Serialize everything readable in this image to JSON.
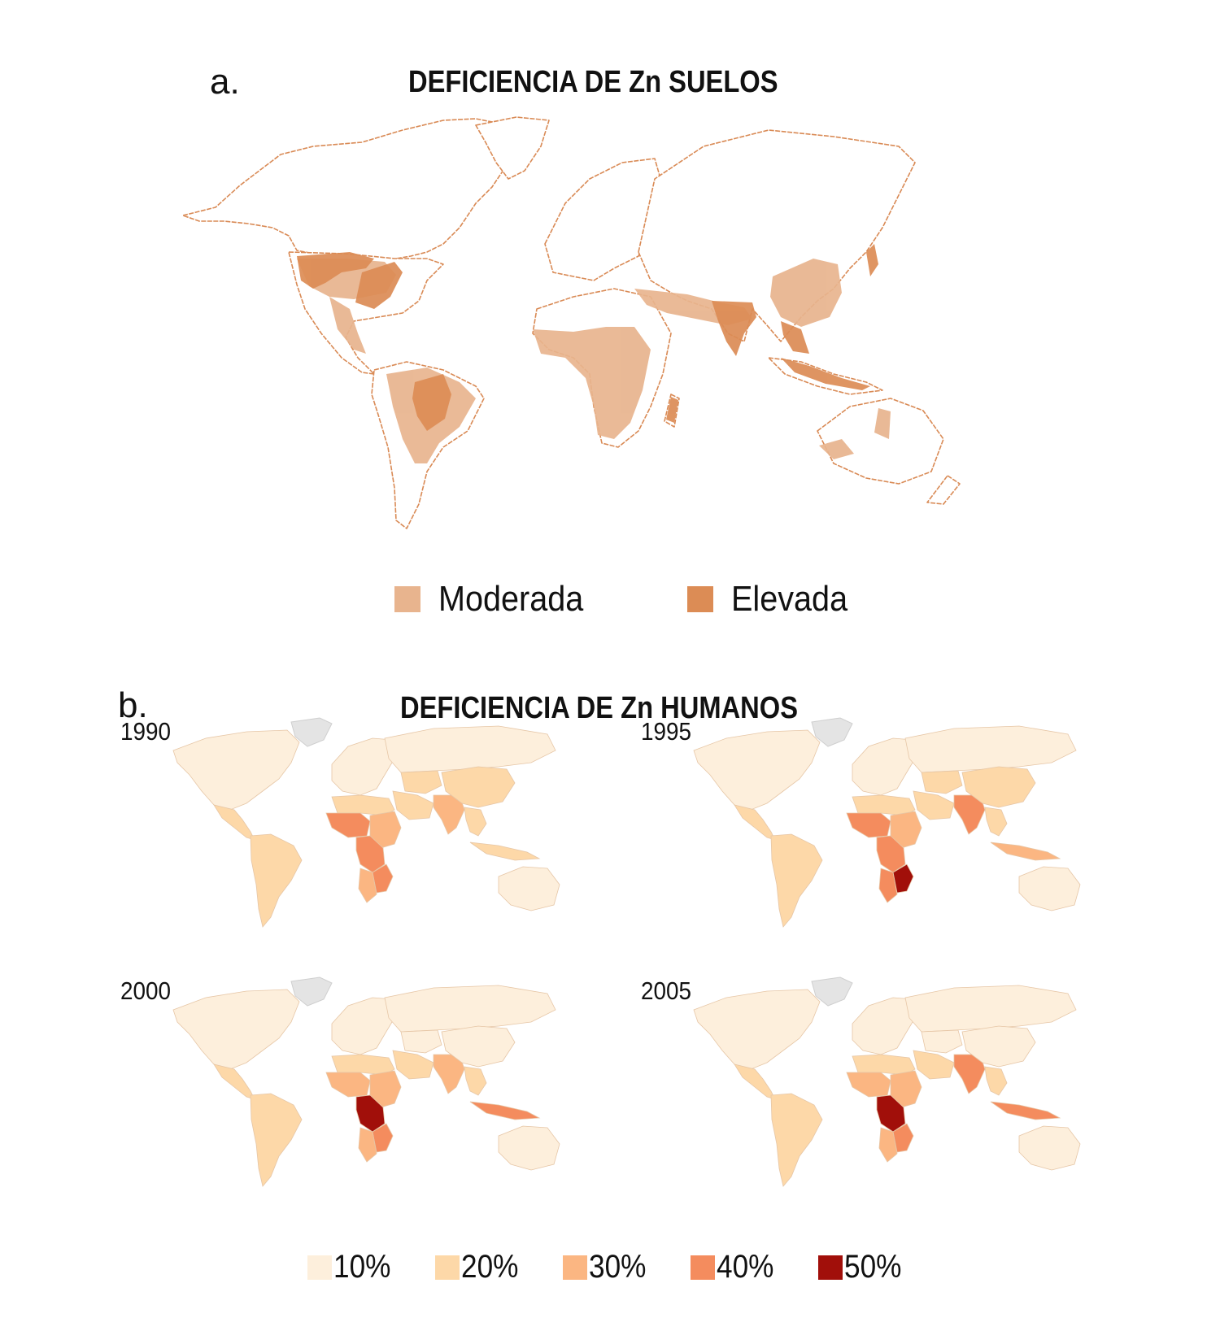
{
  "panel_a": {
    "letter": "a.",
    "title": "DEFICIENCIA DE Zn SUELOS",
    "legend": [
      {
        "label": "Moderada",
        "color": "#e8b48e"
      },
      {
        "label": "Elevada",
        "color": "#dc8c55"
      }
    ]
  },
  "panel_b": {
    "letter": "b.",
    "title": "DEFICIENCIA DE Zn HUMANOS",
    "maps": [
      {
        "year": "1990",
        "regions": {
          "n_america": 0,
          "c_america": 1,
          "s_america": 1,
          "europe": 0,
          "n_africa": 1,
          "w_africa": 3,
          "e_africa": 2,
          "c_africa": 3,
          "s_africa": 3,
          "south_africa": 2,
          "mid_east": 1,
          "russia": 0,
          "c_asia": 1,
          "india": 2,
          "china": 1,
          "se_asia": 1,
          "indonesia": 1,
          "australia": 0
        }
      },
      {
        "year": "1995",
        "regions": {
          "n_america": 0,
          "c_america": 1,
          "s_america": 1,
          "europe": 0,
          "n_africa": 1,
          "w_africa": 3,
          "e_africa": 2,
          "c_africa": 3,
          "s_africa": 4,
          "south_africa": 3,
          "mid_east": 1,
          "russia": 0,
          "c_asia": 1,
          "india": 3,
          "china": 1,
          "se_asia": 1,
          "indonesia": 2,
          "australia": 0
        }
      },
      {
        "year": "2000",
        "regions": {
          "n_america": 0,
          "c_america": 1,
          "s_america": 1,
          "europe": 0,
          "n_africa": 1,
          "w_africa": 2,
          "e_africa": 2,
          "c_africa": 4,
          "s_africa": 3,
          "south_africa": 2,
          "mid_east": 1,
          "russia": 0,
          "c_asia": 0,
          "india": 2,
          "china": 0,
          "se_asia": 1,
          "indonesia": 3,
          "australia": 0
        }
      },
      {
        "year": "2005",
        "regions": {
          "n_america": 0,
          "c_america": 1,
          "s_america": 1,
          "europe": 0,
          "n_africa": 1,
          "w_africa": 2,
          "e_africa": 2,
          "c_africa": 4,
          "s_africa": 3,
          "south_africa": 2,
          "mid_east": 1,
          "russia": 0,
          "c_asia": 0,
          "india": 3,
          "china": 0,
          "se_asia": 1,
          "indonesia": 3,
          "australia": 0
        }
      }
    ],
    "legend": [
      {
        "label": "10%",
        "color": "#fdefdc"
      },
      {
        "label": "20%",
        "color": "#fdd8a8"
      },
      {
        "label": "30%",
        "color": "#fbb682"
      },
      {
        "label": "40%",
        "color": "#f48c5e"
      },
      {
        "label": "50%",
        "color": "#a10f0a"
      }
    ],
    "greenland_color": "#e4e4e4"
  }
}
